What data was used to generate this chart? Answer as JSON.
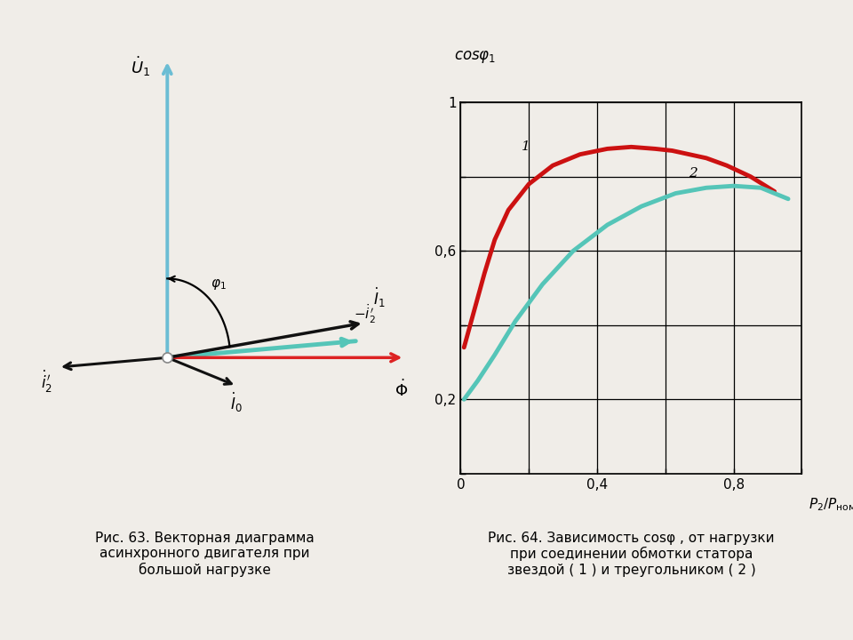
{
  "fig_width": 9.6,
  "fig_height": 7.2,
  "dpi": 100,
  "bg_color": "#f0ede8",
  "left_caption": "Рис. 63. Векторная диаграмма\nасинхронного двигателя при\nбольшой нагрузке",
  "right_caption": "Рис. 64. Зависимость cosφ , от нагрузки\nпри соединении обмотки статора\nзвездой ( 1 ) и треугольником ( 2 )",
  "U1_color": "#6bbdd4",
  "phi_color": "#dd2222",
  "cyan_color": "#55c5b8",
  "black_color": "#111111",
  "curve1_x": [
    0.01,
    0.04,
    0.07,
    0.1,
    0.14,
    0.2,
    0.27,
    0.35,
    0.43,
    0.5,
    0.57,
    0.62,
    0.67,
    0.72,
    0.78,
    0.85,
    0.92
  ],
  "curve1_y": [
    0.34,
    0.44,
    0.54,
    0.63,
    0.71,
    0.78,
    0.83,
    0.86,
    0.875,
    0.88,
    0.875,
    0.87,
    0.86,
    0.85,
    0.83,
    0.8,
    0.76
  ],
  "curve1_color": "#cc1111",
  "curve2_x": [
    0.01,
    0.05,
    0.1,
    0.16,
    0.24,
    0.33,
    0.43,
    0.53,
    0.63,
    0.72,
    0.8,
    0.88,
    0.96
  ],
  "curve2_y": [
    0.2,
    0.25,
    0.32,
    0.41,
    0.51,
    0.6,
    0.67,
    0.72,
    0.755,
    0.77,
    0.775,
    0.77,
    0.74
  ],
  "curve2_color": "#55c5b8"
}
